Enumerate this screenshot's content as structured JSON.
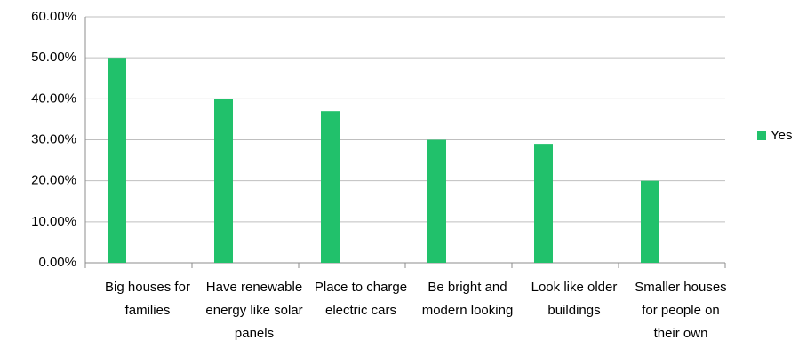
{
  "chart_data": {
    "type": "bar",
    "categories": [
      "Big houses for families",
      "Have renewable energy like solar panels",
      "Place to charge electric cars",
      "Be bright and modern looking",
      "Look like older buildings",
      "Smaller houses for people on their own"
    ],
    "series": [
      {
        "name": "Yes",
        "color": "#21c16b",
        "values": [
          50,
          40,
          37,
          30,
          29,
          20
        ]
      }
    ],
    "ylim": [
      0,
      60
    ],
    "yticks": [
      {
        "value": 0,
        "label": "0.00%"
      },
      {
        "value": 10,
        "label": "10.00%"
      },
      {
        "value": 20,
        "label": "20.00%"
      },
      {
        "value": 30,
        "label": "30.00%"
      },
      {
        "value": 40,
        "label": "40.00%"
      },
      {
        "value": 50,
        "label": "50.00%"
      },
      {
        "value": 60,
        "label": "60.00%"
      }
    ],
    "grid": true,
    "legend": "right"
  }
}
